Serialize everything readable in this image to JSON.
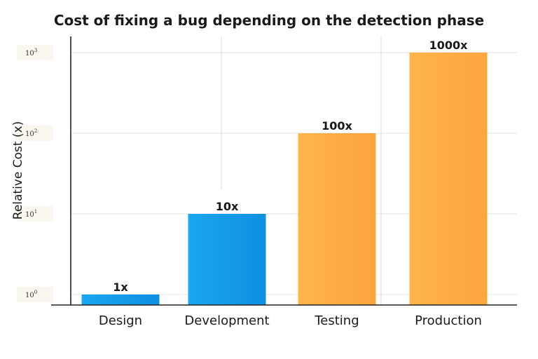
{
  "chart_data": {
    "type": "bar",
    "title": "Cost of fixing a bug depending on the detection phase",
    "ylabel": "Relative Cost (x)",
    "xlabel": "",
    "yscale": "log",
    "ylim": [
      1,
      1000
    ],
    "yticks": [
      {
        "base": "10",
        "exp": "0"
      },
      {
        "base": "10",
        "exp": "1"
      },
      {
        "base": "10",
        "exp": "2"
      },
      {
        "base": "10",
        "exp": "3"
      }
    ],
    "categories": [
      "Design",
      "Development",
      "Testing",
      "Production"
    ],
    "values": [
      1,
      10,
      100,
      1000
    ],
    "data_labels": [
      "1x",
      "10x",
      "100x",
      "1000x"
    ],
    "colors": {
      "Design": [
        "#1aa7f0",
        "#0e8fe0"
      ],
      "Development": [
        "#1aa7f0",
        "#0e8fe0"
      ],
      "Testing": [
        "#ffb44a",
        "#fba53e"
      ],
      "Production": [
        "#ffb44a",
        "#fba53e"
      ]
    },
    "grid": true
  }
}
